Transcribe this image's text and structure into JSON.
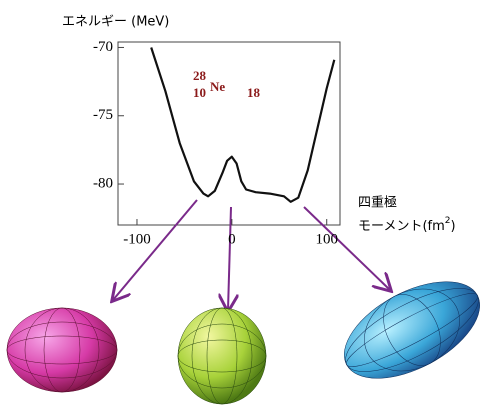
{
  "chart_data": {
    "type": "line",
    "y_label": "エネルギー (MeV)",
    "x_label": {
      "line1": "四重極",
      "line2": "モーメント(fm",
      "superscript": "2",
      "close": ")"
    },
    "annotation": {
      "mass": "28",
      "atomic": "10",
      "symbol": "Ne",
      "neutron": "18"
    },
    "x": [
      -85,
      -70,
      -55,
      -40,
      -30,
      -25,
      -18,
      -10,
      -5,
      0,
      5,
      10,
      15,
      25,
      40,
      55,
      62,
      70,
      80,
      90,
      100,
      108
    ],
    "values": [
      -70,
      -73.2,
      -77,
      -79.8,
      -80.7,
      -80.9,
      -80.5,
      -79.2,
      -78.3,
      -78,
      -78.5,
      -79.8,
      -80.4,
      -80.6,
      -80.7,
      -80.9,
      -81.3,
      -81,
      -79,
      -76,
      -73,
      -70.9
    ],
    "color": "#111111",
    "xlim": [
      -120,
      114
    ],
    "ylim": [
      -83,
      -69.6
    ],
    "xticks": [
      -100,
      0,
      100
    ],
    "yticks": [
      -70,
      -75,
      -80
    ]
  }
}
